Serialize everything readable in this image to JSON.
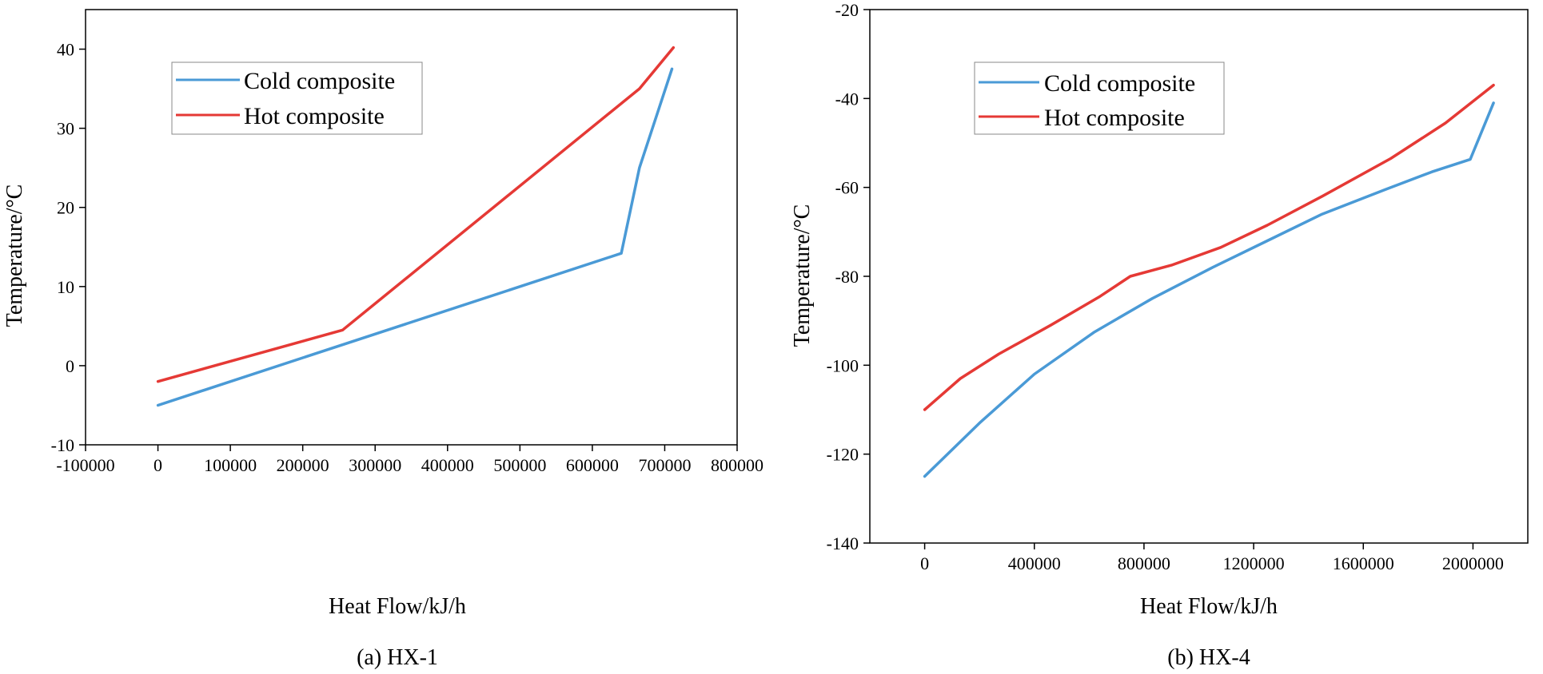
{
  "colors": {
    "cold": "#4a9ad6",
    "hot": "#e53935"
  },
  "chart_data": [
    {
      "type": "line",
      "caption": "(a) HX-1",
      "xlabel": "Heat Flow/kJ/h",
      "ylabel": "Temperature/°C",
      "xlim": [
        -100000,
        800000
      ],
      "ylim": [
        -10,
        45
      ],
      "xticks": [
        -100000,
        0,
        100000,
        200000,
        300000,
        400000,
        500000,
        600000,
        700000,
        800000
      ],
      "yticks": [
        -10,
        0,
        10,
        20,
        30,
        40
      ],
      "legend": "top-left",
      "series": [
        {
          "name": "Cold composite",
          "color_key": "cold",
          "x": [
            0,
            640000,
            665000,
            710000
          ],
          "y": [
            -5,
            14.2,
            25,
            37.5
          ]
        },
        {
          "name": "Hot composite",
          "color_key": "hot",
          "x": [
            0,
            255000,
            665000,
            712000
          ],
          "y": [
            -2,
            4.5,
            35,
            40.2
          ]
        }
      ]
    },
    {
      "type": "line",
      "caption": "(b) HX-4",
      "xlabel": "Heat Flow/kJ/h",
      "ylabel": "Temperature/°C",
      "xlim": [
        -200000,
        2200000
      ],
      "ylim": [
        -140,
        -20
      ],
      "xticks": [
        0,
        400000,
        800000,
        1200000,
        1600000,
        2000000
      ],
      "yticks": [
        -140,
        -120,
        -100,
        -80,
        -60,
        -40,
        -20
      ],
      "legend": "top-left",
      "series": [
        {
          "name": "Cold composite",
          "color_key": "cold",
          "x": [
            0,
            200000,
            400000,
            620000,
            830000,
            1050000,
            1250000,
            1450000,
            1680000,
            1850000,
            1990000,
            2075000
          ],
          "y": [
            -125,
            -113,
            -102,
            -92.5,
            -85,
            -78,
            -72,
            -66,
            -60.5,
            -56.5,
            -53.7,
            -41
          ]
        },
        {
          "name": "Hot composite",
          "color_key": "hot",
          "x": [
            0,
            130000,
            270000,
            460000,
            640000,
            750000,
            900000,
            1080000,
            1250000,
            1450000,
            1700000,
            1900000,
            2075000
          ],
          "y": [
            -110,
            -103,
            -97.5,
            -91,
            -84.5,
            -80,
            -77.5,
            -73.5,
            -68.5,
            -62,
            -53.5,
            -45.5,
            -37
          ]
        }
      ]
    }
  ]
}
